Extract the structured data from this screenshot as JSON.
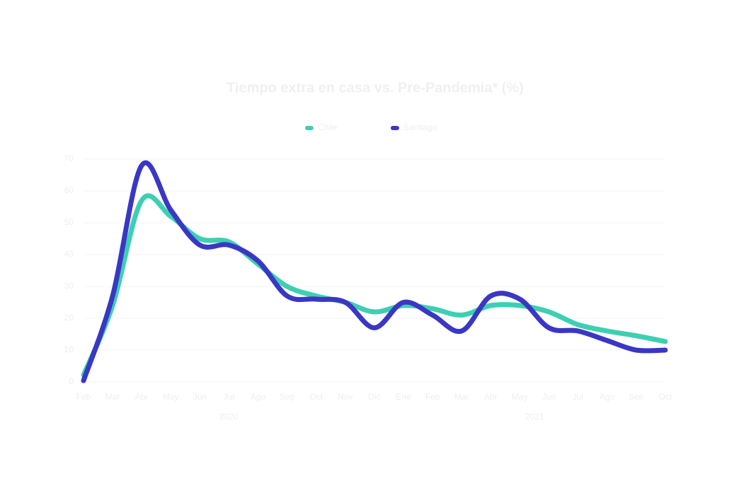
{
  "chart_data": {
    "type": "line",
    "title": "Tiempo extra en casa vs. Pre-Pandemia* (%)",
    "categories": [
      "Feb",
      "Mar",
      "Abr",
      "May",
      "Jun",
      "Jul",
      "Ago",
      "Sep",
      "Oct",
      "Nov",
      "Dic",
      "Ene",
      "Feb",
      "Mar",
      "Abr",
      "May",
      "Jun",
      "Jul",
      "Ago",
      "Sep",
      "Oct"
    ],
    "year_labels": [
      "2020",
      "2021"
    ],
    "series": [
      {
        "name": "Chile",
        "color": "#3ecfb2",
        "values": [
          2.2,
          24,
          57,
          52,
          45,
          44,
          37,
          30,
          27,
          25,
          22,
          24,
          23,
          21,
          24,
          24,
          22,
          18,
          16,
          14.5,
          12.7
        ]
      },
      {
        "name": "Santiago",
        "color": "#3a37c4",
        "values": [
          0.4,
          27,
          68,
          54,
          43,
          43,
          38,
          27,
          26,
          25,
          17,
          25,
          21,
          16,
          27,
          26,
          17,
          16,
          13,
          10,
          10
        ]
      }
    ],
    "ylim": [
      0,
      70
    ],
    "yticks": [
      0,
      10,
      20,
      30,
      40,
      50,
      60,
      70
    ],
    "grid": true
  }
}
